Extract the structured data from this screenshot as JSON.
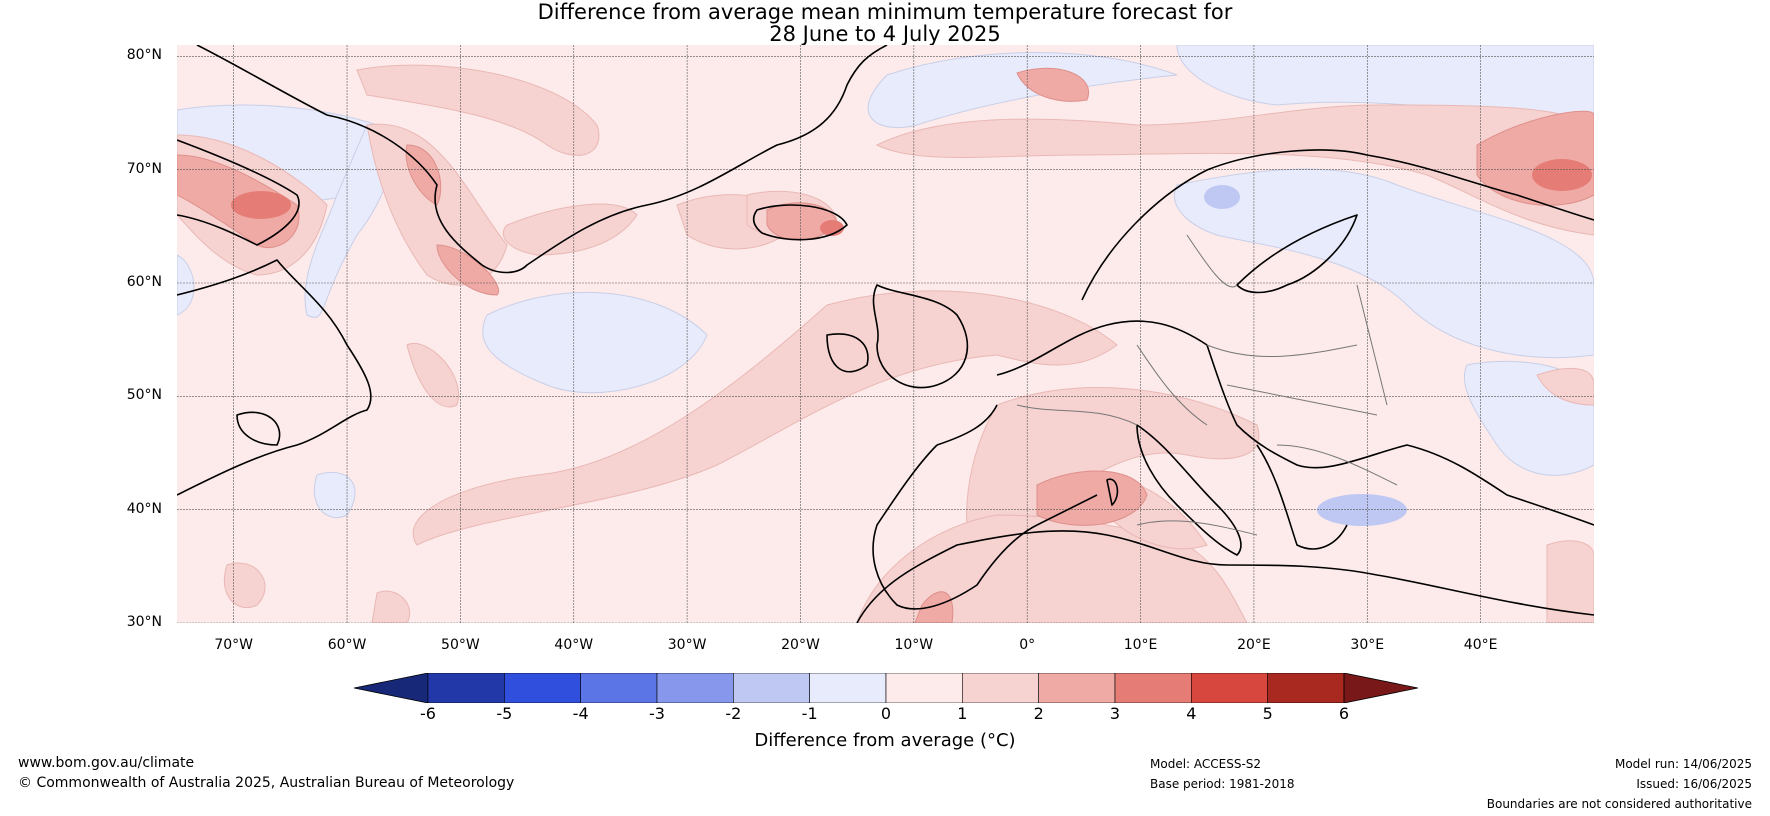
{
  "title": {
    "line1": "Difference from average mean minimum temperature forecast for",
    "line2": "28 June to 4 July 2025"
  },
  "map": {
    "lat_labels": [
      {
        "value": 80,
        "text": "80°N"
      },
      {
        "value": 70,
        "text": "70°N"
      },
      {
        "value": 60,
        "text": "60°N"
      },
      {
        "value": 50,
        "text": "50°N"
      },
      {
        "value": 40,
        "text": "40°N"
      },
      {
        "value": 30,
        "text": "30°N"
      }
    ],
    "lon_labels": [
      {
        "value": -70,
        "text": "70°W"
      },
      {
        "value": -60,
        "text": "60°W"
      },
      {
        "value": -50,
        "text": "50°W"
      },
      {
        "value": -40,
        "text": "40°W"
      },
      {
        "value": -30,
        "text": "30°W"
      },
      {
        "value": -20,
        "text": "20°W"
      },
      {
        "value": -10,
        "text": "10°W"
      },
      {
        "value": 0,
        "text": "0°"
      },
      {
        "value": 10,
        "text": "10°E"
      },
      {
        "value": 20,
        "text": "20°E"
      },
      {
        "value": 30,
        "text": "30°E"
      },
      {
        "value": 40,
        "text": "40°E"
      }
    ],
    "lon_range": [
      -75,
      50
    ],
    "lat_range": [
      30,
      81
    ]
  },
  "colorbar": {
    "ticks": [
      "-6",
      "-5",
      "-4",
      "-3",
      "-2",
      "-1",
      "0",
      "1",
      "2",
      "3",
      "4",
      "5",
      "6"
    ],
    "colors": [
      "#2238a8",
      "#2f4fdc",
      "#5b75e6",
      "#8798ec",
      "#bfc8f3",
      "#e8ebfb",
      "#fcebea",
      "#f6d2d0",
      "#efaaa6",
      "#e57d76",
      "#d8473e",
      "#a92820"
    ],
    "low_extend_color": "#172878",
    "high_extend_color": "#781818",
    "label": "Difference from average (°C)"
  },
  "footer": {
    "url": "www.bom.gov.au/climate",
    "copyright": "© Commonwealth of Australia 2025, Australian Bureau of Meteorology",
    "model": "Model: ACCESS-S2",
    "base_period": "Base period: 1981-2018",
    "model_run": "Model run: 14/06/2025",
    "issued": "Issued: 16/06/2025",
    "disclaimer": "Boundaries are not considered authoritative"
  }
}
